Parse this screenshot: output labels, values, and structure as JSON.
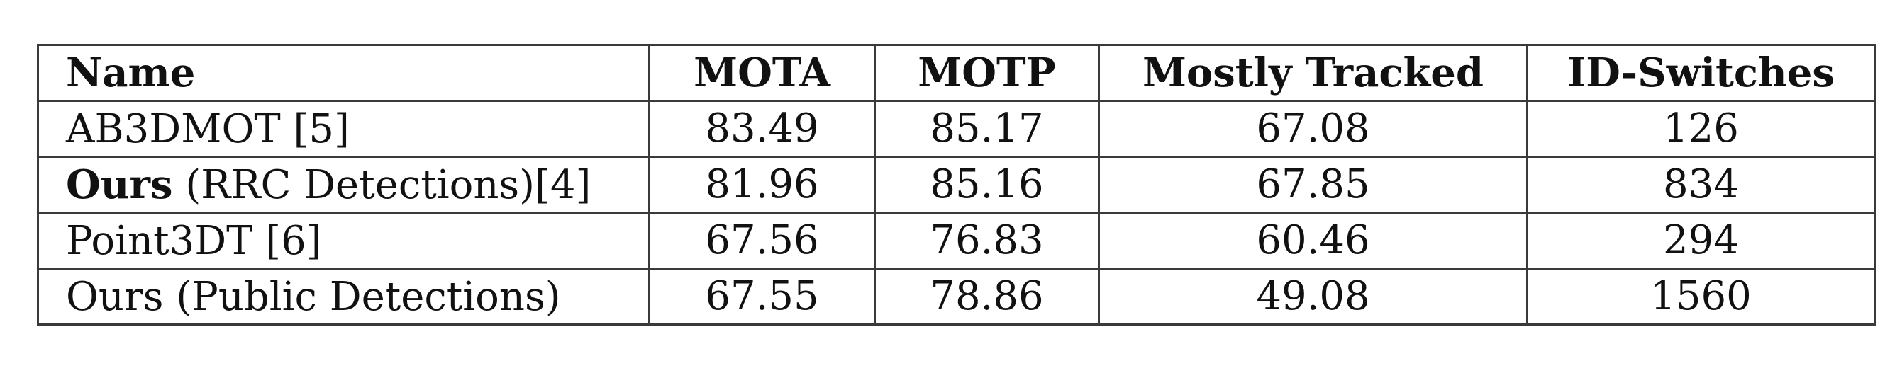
{
  "table": {
    "headers": [
      "Name",
      "MOTA",
      "MOTP",
      "Mostly Tracked",
      "ID-Switches"
    ],
    "rows": [
      {
        "name_bold": "",
        "name_rest": "AB3DMOT [5]",
        "mota": "83.49",
        "motp": "85.17",
        "mostly_tracked": "67.08",
        "id_switches": "126"
      },
      {
        "name_bold": "Ours",
        "name_rest": " (RRC Detections)[4]",
        "mota": "81.96",
        "motp": "85.16",
        "mostly_tracked": "67.85",
        "id_switches": "834"
      },
      {
        "name_bold": "",
        "name_rest": "Point3DT [6]",
        "mota": "67.56",
        "motp": "76.83",
        "mostly_tracked": "60.46",
        "id_switches": "294"
      },
      {
        "name_bold": "",
        "name_rest": "Ours (Public Detections)",
        "mota": "67.55",
        "motp": "78.86",
        "mostly_tracked": "49.08",
        "id_switches": "1560"
      }
    ]
  }
}
